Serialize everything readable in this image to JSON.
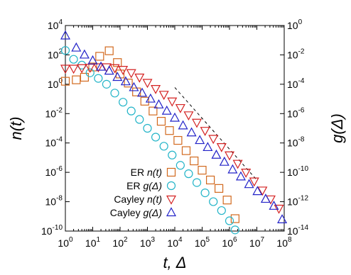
{
  "chart_data": {
    "type": "scatter",
    "title": "",
    "xlabel": "t, Δ",
    "ylabel": "n(t)",
    "y2label": "g(Δ)",
    "x_scale": "log",
    "y_scale": "log",
    "y2_scale": "log",
    "xlim": [
      1,
      100000000
    ],
    "ylim": [
      1e-10,
      10000
    ],
    "y2lim": [
      1e-14,
      1
    ],
    "x_ticks": [
      {
        "base": "10",
        "exp": "0",
        "v": 1
      },
      {
        "base": "10",
        "exp": "1",
        "v": 10
      },
      {
        "base": "10",
        "exp": "2",
        "v": 100
      },
      {
        "base": "10",
        "exp": "3",
        "v": 1000
      },
      {
        "base": "10",
        "exp": "4",
        "v": 10000
      },
      {
        "base": "10",
        "exp": "5",
        "v": 100000
      },
      {
        "base": "10",
        "exp": "6",
        "v": 1000000
      },
      {
        "base": "10",
        "exp": "7",
        "v": 10000000
      },
      {
        "base": "10",
        "exp": "8",
        "v": 100000000
      }
    ],
    "y_ticks": [
      {
        "base": "10",
        "exp": "4",
        "v": 10000
      },
      {
        "base": "10",
        "exp": "2",
        "v": 100
      },
      {
        "base": "10",
        "exp": "0",
        "v": 1
      },
      {
        "base": "10",
        "exp": "-2",
        "v": 0.01
      },
      {
        "base": "10",
        "exp": "-4",
        "v": 0.0001
      },
      {
        "base": "10",
        "exp": "-6",
        "v": 1e-06
      },
      {
        "base": "10",
        "exp": "-8",
        "v": 1e-08
      },
      {
        "base": "10",
        "exp": "-10",
        "v": 1e-10
      }
    ],
    "y2_ticks": [
      {
        "base": "10",
        "exp": "0",
        "v": 1
      },
      {
        "base": "10",
        "exp": "-2",
        "v": 0.01
      },
      {
        "base": "10",
        "exp": "-4",
        "v": 0.0001
      },
      {
        "base": "10",
        "exp": "-6",
        "v": 1e-06
      },
      {
        "base": "10",
        "exp": "-8",
        "v": 1e-08
      },
      {
        "base": "10",
        "exp": "-10",
        "v": 1e-10
      },
      {
        "base": "10",
        "exp": "-12",
        "v": 1e-12
      },
      {
        "base": "10",
        "exp": "-14",
        "v": 1e-14
      }
    ],
    "grid": false,
    "legend_position": "bottom-left",
    "series": [
      {
        "name": "ER n(t)",
        "legend_prefix": "ER ",
        "legend_var": "n(t)",
        "marker": "square",
        "color": "#d2691e",
        "axis": "left",
        "points": [
          [
            1,
            1.6
          ],
          [
            2.5,
            2
          ],
          [
            5,
            3
          ],
          [
            10,
            15
          ],
          [
            18,
            80
          ],
          [
            40,
            190
          ],
          [
            80,
            30
          ],
          [
            100,
            5
          ],
          [
            200,
            1.2
          ],
          [
            400,
            0.3
          ],
          [
            800,
            0.07
          ],
          [
            1600,
            0.015
          ],
          [
            3200,
            0.003
          ],
          [
            6400,
            0.0007
          ],
          [
            13000,
            0.00015
          ],
          [
            26000,
            3e-05
          ],
          [
            51000,
            6e-06
          ],
          [
            100000,
            1.4e-06
          ],
          [
            200000,
            3e-07
          ],
          [
            410000,
            8e-08
          ],
          [
            820000,
            1.3e-08
          ],
          [
            1600000,
            7e-10
          ]
        ]
      },
      {
        "name": "ER g(Δ)",
        "legend_prefix": "ER ",
        "legend_var": "g(Δ)",
        "marker": "circle",
        "color": "#22b4c8",
        "axis": "right",
        "points": [
          [
            1,
            0.02
          ],
          [
            2,
            0.005
          ],
          [
            4,
            0.002
          ],
          [
            8,
            0.0006
          ],
          [
            16,
            0.00025
          ],
          [
            32,
            0.0001
          ],
          [
            64,
            2.5e-05
          ],
          [
            128,
            6e-06
          ],
          [
            256,
            1.5e-06
          ],
          [
            512,
            4e-07
          ],
          [
            1000,
            1e-07
          ],
          [
            2000,
            2.5e-08
          ],
          [
            4000,
            6e-09
          ],
          [
            8000,
            1.5e-09
          ],
          [
            16000,
            3e-10
          ],
          [
            32000,
            8e-11
          ],
          [
            64000,
            2e-11
          ],
          [
            128000,
            4e-12
          ],
          [
            256000,
            1e-12
          ],
          [
            512000,
            2.5e-13
          ],
          [
            1000000,
            5e-14
          ],
          [
            1600000,
            1.2e-14
          ]
        ]
      },
      {
        "name": "Cayley n(t)",
        "legend_prefix": "Cayley ",
        "legend_var": "n(t)",
        "marker": "triangle-down",
        "color": "#d42222",
        "axis": "left",
        "points": [
          [
            1,
            12
          ],
          [
            2,
            12
          ],
          [
            4,
            13
          ],
          [
            8,
            14
          ],
          [
            16,
            15
          ],
          [
            32,
            15
          ],
          [
            64,
            13
          ],
          [
            128,
            10
          ],
          [
            256,
            6
          ],
          [
            512,
            3
          ],
          [
            1000,
            1.3
          ],
          [
            2000,
            0.5
          ],
          [
            4000,
            0.2
          ],
          [
            8000,
            0.07
          ],
          [
            16000,
            0.025
          ],
          [
            32000,
            0.008
          ],
          [
            64000,
            0.0025
          ],
          [
            128000,
            0.0007
          ],
          [
            256000,
            0.0002
          ],
          [
            512000,
            5.5e-05
          ],
          [
            1000000,
            1.5e-05
          ],
          [
            2000000,
            4e-06
          ],
          [
            4000000,
            1e-06
          ],
          [
            8000000,
            2.5e-07
          ],
          [
            16000000,
            6e-08
          ],
          [
            32000000,
            1.5e-08
          ],
          [
            64000000,
            3.5e-09
          ]
        ]
      },
      {
        "name": "Cayley g(Δ)",
        "legend_prefix": "Cayley ",
        "legend_var": "g(Δ)",
        "marker": "triangle-up",
        "color": "#2222c8",
        "axis": "right",
        "points": [
          [
            1,
            0.2
          ],
          [
            2.5,
            0.03
          ],
          [
            5,
            0.01
          ],
          [
            10,
            0.004
          ],
          [
            20,
            0.0015
          ],
          [
            40,
            0.0008
          ],
          [
            80,
            0.0003
          ],
          [
            160,
            0.00015
          ],
          [
            320,
            6e-05
          ],
          [
            640,
            2.5e-05
          ],
          [
            1300,
            1e-05
          ],
          [
            2600,
            4e-06
          ],
          [
            5100,
            1.5e-06
          ],
          [
            10000,
            5e-07
          ],
          [
            20000,
            1.5e-07
          ],
          [
            41000,
            5e-08
          ],
          [
            82000,
            1.5e-08
          ],
          [
            160000,
            5e-09
          ],
          [
            330000,
            1.5e-09
          ],
          [
            650000,
            5e-10
          ],
          [
            1300000,
            1.5e-10
          ],
          [
            2600000,
            5e-11
          ],
          [
            5200000,
            1.5e-11
          ],
          [
            10500000,
            5e-12
          ],
          [
            21000000,
            1.5e-12
          ],
          [
            42000000,
            5e-13
          ],
          [
            84000000,
            6e-14
          ]
        ]
      }
    ],
    "reference_line": {
      "style": "dashed",
      "x": [
        10000,
        10000000
      ],
      "y": [
        0.6,
        3e-07
      ]
    }
  }
}
